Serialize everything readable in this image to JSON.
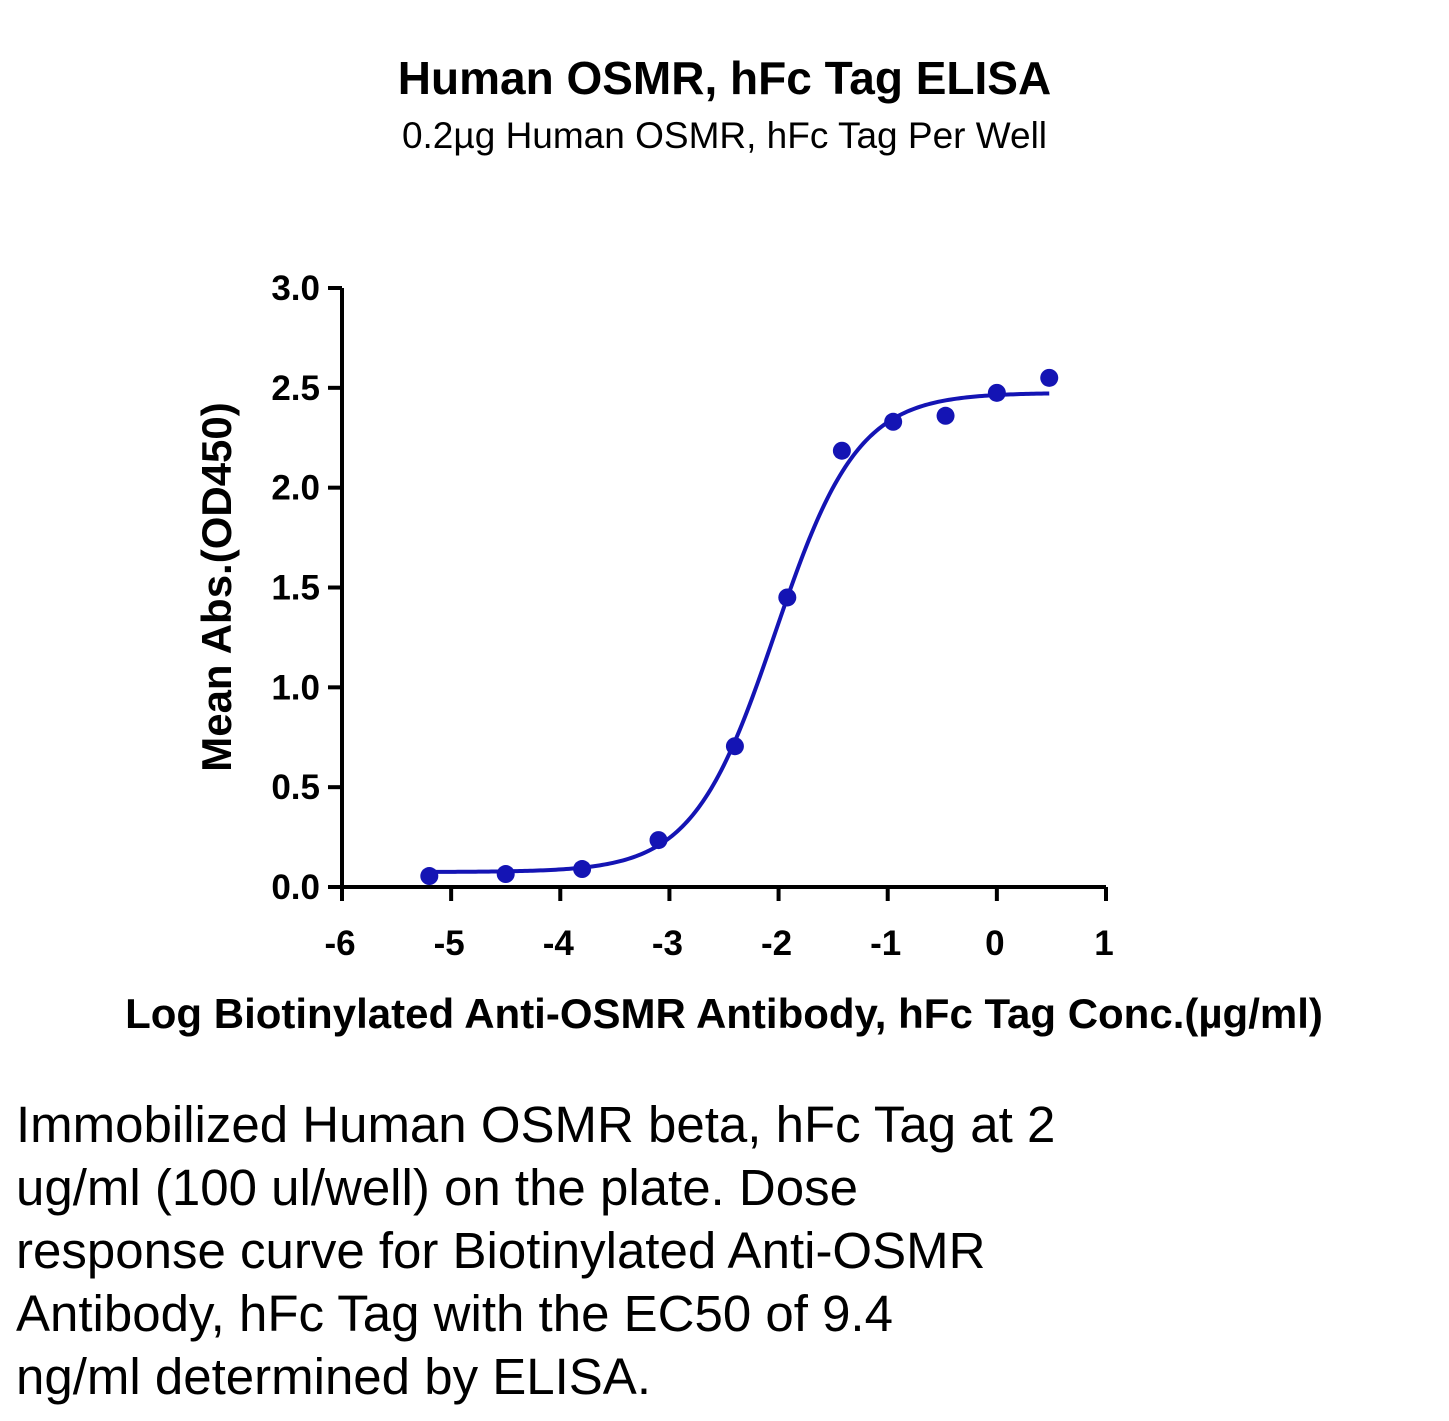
{
  "chart_data": {
    "type": "scatter",
    "title": "Human OSMR, hFc Tag ELISA",
    "subtitle": "0.2µg Human OSMR, hFc Tag Per Well",
    "xlabel": "Log Biotinylated Anti-OSMR Antibody, hFc Tag Conc.(µg/ml)",
    "ylabel": "Mean Abs.(OD450)",
    "xlim": [
      -6,
      1
    ],
    "ylim": [
      0,
      3.0
    ],
    "x_ticks": [
      "-6",
      "-5",
      "-4",
      "-3",
      "-2",
      "-1",
      "0",
      "1"
    ],
    "y_ticks": [
      "0.0",
      "0.5",
      "1.0",
      "1.5",
      "2.0",
      "2.5",
      "3.0"
    ],
    "grid": false,
    "color": "#1414b4",
    "points": {
      "x": [
        -5.2,
        -4.5,
        -3.8,
        -3.1,
        -2.4,
        -1.92,
        -1.42,
        -0.95,
        -0.47,
        0.0,
        0.48
      ],
      "y": [
        0.055,
        0.065,
        0.09,
        0.235,
        0.705,
        1.45,
        2.185,
        2.33,
        2.36,
        2.475,
        2.55
      ]
    },
    "fit_curve": {
      "type": "4PL",
      "bottom": 0.075,
      "top": 2.475,
      "log_ec50": -2.03,
      "hill_slope": 1.15,
      "x_range": [
        -5.2,
        0.48
      ]
    }
  },
  "caption_lines": [
    "Immobilized Human OSMR beta, hFc Tag at 2",
    "ug/ml (100 ul/well) on the plate. Dose",
    "response curve for Biotinylated Anti-OSMR",
    "Antibody, hFc Tag with the EC50 of 9.4",
    "ng/ml determined by ELISA."
  ]
}
